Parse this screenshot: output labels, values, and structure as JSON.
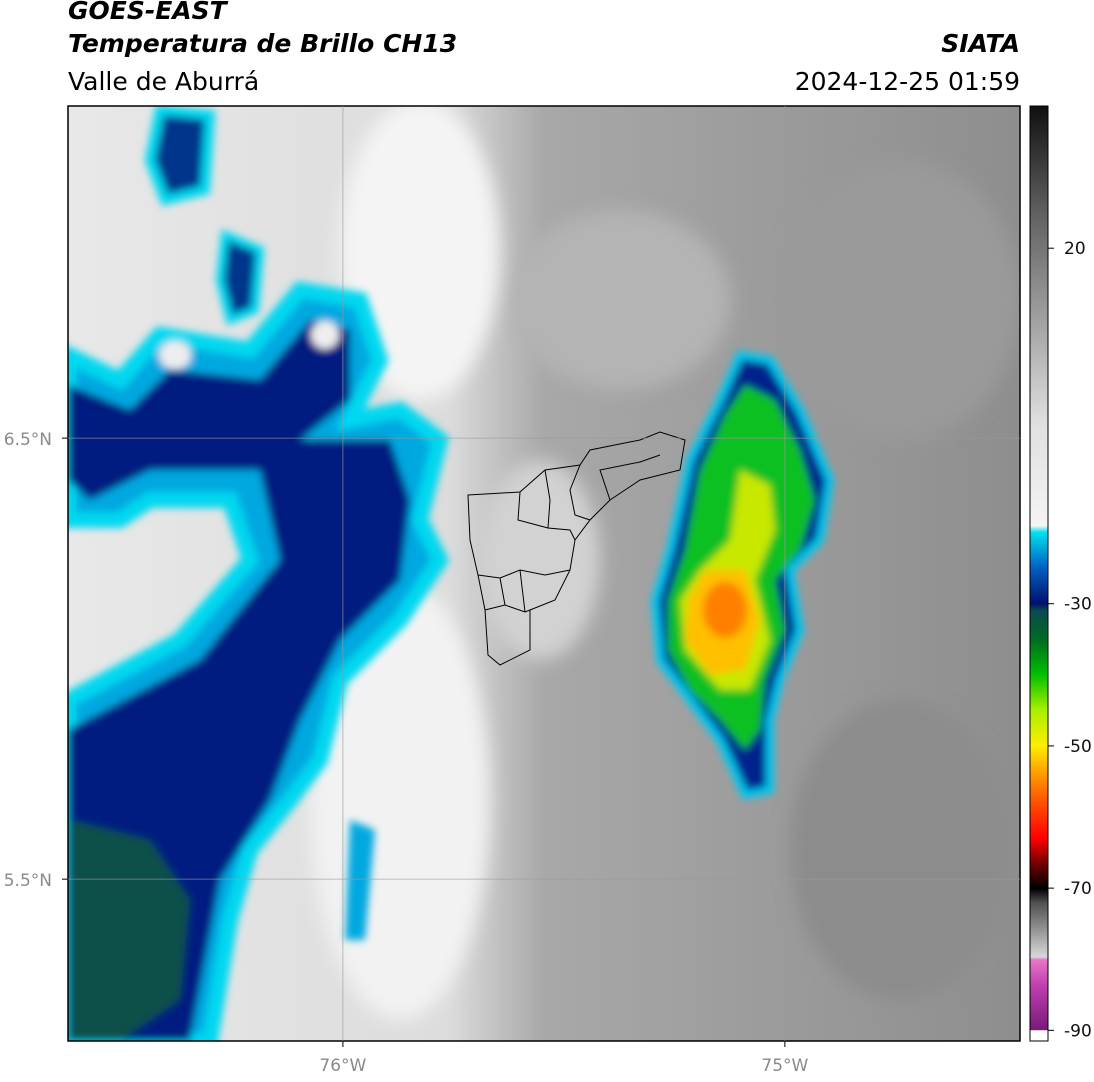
{
  "header": {
    "title": "GOES-EAST",
    "subtitle": "Temperatura de Brillo CH13",
    "source": "SIATA",
    "region": "Valle de Aburrá",
    "timestamp": "2024-12-25 01:59"
  },
  "map": {
    "xlim": [
      -76.622,
      -74.468
    ],
    "ylim": [
      5.133,
      7.253
    ],
    "xticks": [
      {
        "value": -76,
        "label": "76°W"
      },
      {
        "value": -75,
        "label": "75°W"
      }
    ],
    "yticks": [
      {
        "value": 5.5,
        "label": "5.5°N"
      },
      {
        "value": 6.5,
        "label": "6.5°N"
      }
    ],
    "grid": true
  },
  "colorbar": {
    "ylim": [
      -91.5,
      40
    ],
    "yticks": [
      -90,
      -70,
      -50,
      -30,
      20
    ]
  }
}
